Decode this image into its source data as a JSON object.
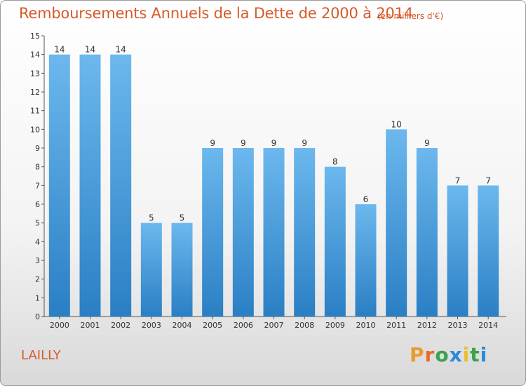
{
  "title": "Remboursements Annuels de la Dette de 2000 à 2014",
  "unit_note": "(en milliers d'€)",
  "place": "LAILLY",
  "logo": {
    "text": "Proxiti",
    "letters": [
      "P",
      "r",
      "o",
      "x",
      "i",
      "t",
      "i"
    ],
    "colors": [
      "#e89a2c",
      "#e86a2c",
      "#3aa24a",
      "#2a8ad6",
      "#e8c02c",
      "#3aa24a",
      "#2a8ad6"
    ]
  },
  "colors": {
    "bar_light": "#6cb8ee",
    "bar_dark": "#2a7fc4",
    "title": "#d65a2a"
  },
  "chart_data": {
    "type": "bar",
    "title": "Remboursements Annuels de la Dette de 2000 à 2014",
    "xlabel": "",
    "ylabel": "",
    "categories": [
      "2000",
      "2001",
      "2002",
      "2003",
      "2004",
      "2005",
      "2006",
      "2007",
      "2008",
      "2009",
      "2010",
      "2011",
      "2012",
      "2013",
      "2014"
    ],
    "values": [
      14,
      14,
      14,
      5,
      5,
      9,
      9,
      9,
      9,
      8,
      6,
      10,
      9,
      7,
      7
    ],
    "ylim": [
      0,
      15
    ],
    "yticks": [
      0,
      1,
      2,
      3,
      4,
      5,
      6,
      7,
      8,
      9,
      10,
      11,
      12,
      13,
      14,
      15
    ],
    "grid": false
  }
}
